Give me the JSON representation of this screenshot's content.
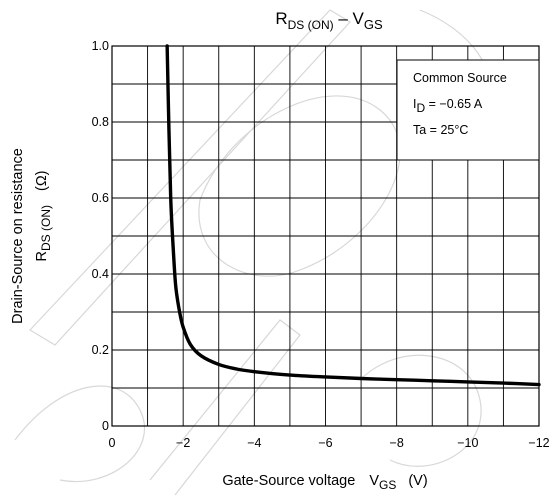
{
  "chart_data": {
    "type": "line",
    "title": {
      "main": "R",
      "sub1": "DS (ON)",
      "dash": " – V",
      "sub2": "GS"
    },
    "xlabel": {
      "main": "Gate-Source voltage",
      "var": "V",
      "var_sub": "GS",
      "unit": "(V)"
    },
    "ylabel": {
      "line1": "Drain-Source on resistance",
      "line2_main": "R",
      "line2_sub": "DS (ON)",
      "unit": "(Ω)"
    },
    "xlim": [
      0,
      -12
    ],
    "ylim": [
      0,
      1.0
    ],
    "x_ticks": [
      "0",
      "−2",
      "−4",
      "−6",
      "−8",
      "−10",
      "−12"
    ],
    "y_ticks": [
      "0",
      "0.2",
      "0.4",
      "0.6",
      "0.8",
      "1.0"
    ],
    "grid": true,
    "x_minor_divisions": 12,
    "y_minor_divisions": 10,
    "legend": {
      "position": "top-right",
      "line1": "Common Source",
      "line2_main": "I",
      "line2_sub": "D",
      "line2_rest": " = −0.65 A",
      "line3": "Ta = 25°C"
    },
    "series": [
      {
        "color": "#000000",
        "x": [
          -1.55,
          -1.6,
          -1.65,
          -1.7,
          -1.75,
          -1.8,
          -1.9,
          -2.0,
          -2.2,
          -2.5,
          -3.0,
          -3.5,
          -4.0,
          -5.0,
          -6.0,
          -7.0,
          -8.0,
          -9.0,
          -10.0,
          -11.0,
          -12.0
        ],
        "y": [
          1.0,
          0.78,
          0.6,
          0.5,
          0.42,
          0.36,
          0.3,
          0.26,
          0.215,
          0.185,
          0.162,
          0.15,
          0.143,
          0.134,
          0.129,
          0.125,
          0.122,
          0.119,
          0.116,
          0.113,
          0.109
        ]
      }
    ]
  }
}
